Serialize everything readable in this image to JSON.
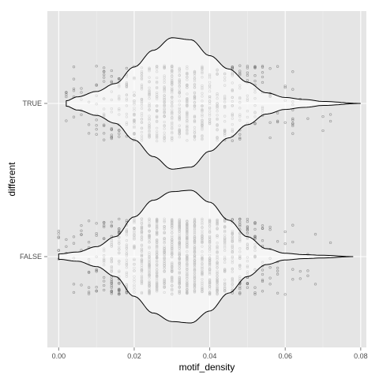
{
  "chart_data": {
    "type": "violin",
    "xlabel": "motif_density",
    "ylabel": "different",
    "xlim": [
      -0.003,
      0.0815
    ],
    "x_ticks": [
      0.0,
      0.02,
      0.04,
      0.06,
      0.08
    ],
    "x_tick_labels": [
      "0.00",
      "0.02",
      "0.04",
      "0.06",
      "0.08"
    ],
    "categories": [
      "TRUE",
      "FALSE"
    ],
    "grid": true,
    "points_jittered": true,
    "colors": {
      "panel": "#e5e5e5",
      "grid": "#ffffff",
      "violin_fill": "#ffffff",
      "violin_line": "#000000",
      "points": "#555555"
    },
    "series": [
      {
        "category": "TRUE",
        "range": [
          0.002,
          0.08
        ],
        "profile": [
          [
            0.002,
            0.04
          ],
          [
            0.005,
            0.1
          ],
          [
            0.01,
            0.18
          ],
          [
            0.015,
            0.3
          ],
          [
            0.02,
            0.55
          ],
          [
            0.025,
            0.8
          ],
          [
            0.03,
            0.99
          ],
          [
            0.035,
            0.96
          ],
          [
            0.04,
            0.72
          ],
          [
            0.045,
            0.52
          ],
          [
            0.05,
            0.32
          ],
          [
            0.055,
            0.16
          ],
          [
            0.06,
            0.09
          ],
          [
            0.065,
            0.06
          ],
          [
            0.07,
            0.03
          ],
          [
            0.08,
            0.0
          ]
        ],
        "point_count": 700
      },
      {
        "category": "FALSE",
        "range": [
          0.0,
          0.078
        ],
        "profile": [
          [
            0.0,
            0.04
          ],
          [
            0.005,
            0.07
          ],
          [
            0.01,
            0.15
          ],
          [
            0.015,
            0.3
          ],
          [
            0.02,
            0.6
          ],
          [
            0.025,
            0.85
          ],
          [
            0.03,
            0.98
          ],
          [
            0.035,
            1.0
          ],
          [
            0.04,
            0.82
          ],
          [
            0.045,
            0.55
          ],
          [
            0.05,
            0.3
          ],
          [
            0.055,
            0.12
          ],
          [
            0.06,
            0.05
          ],
          [
            0.065,
            0.03
          ],
          [
            0.07,
            0.02
          ],
          [
            0.078,
            0.0
          ]
        ],
        "point_count": 1200
      }
    ]
  }
}
